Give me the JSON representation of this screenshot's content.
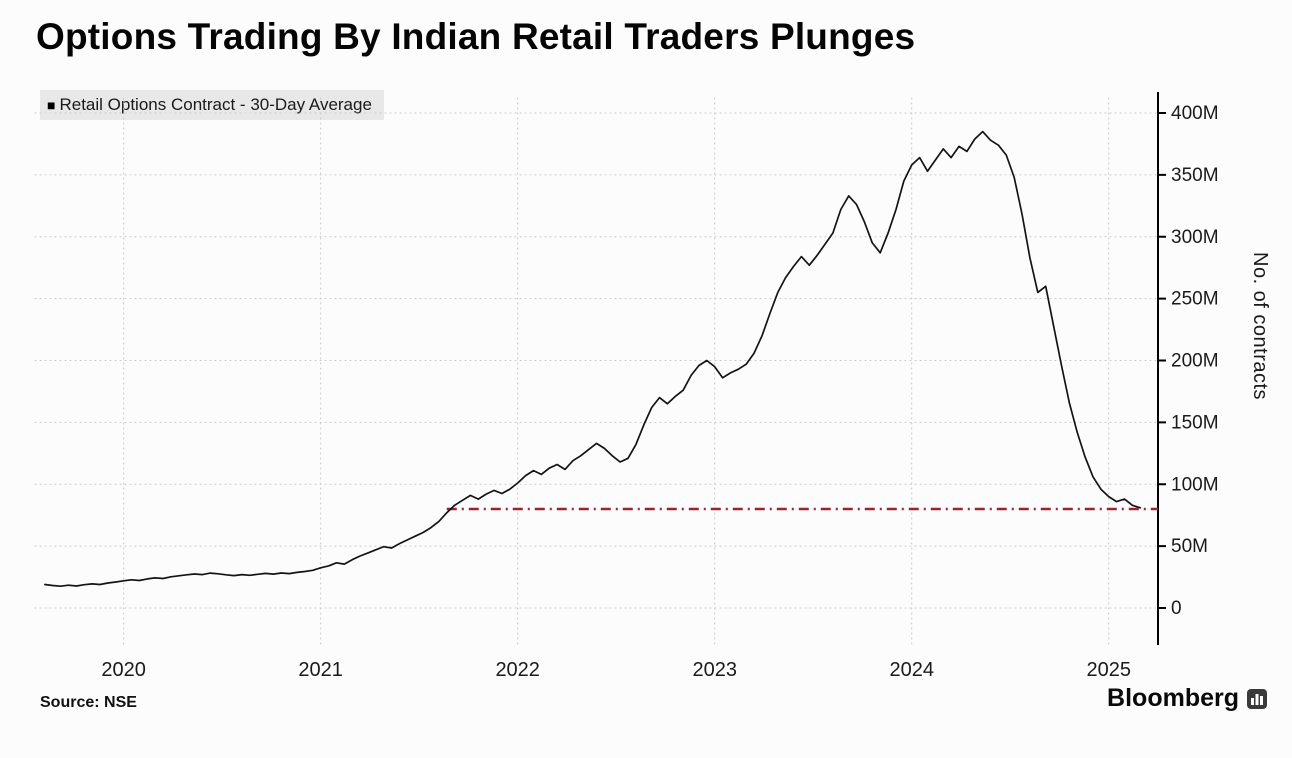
{
  "header": {
    "title": "Options Trading By Indian Retail Traders Plunges"
  },
  "legend": {
    "marker_glyph": "■",
    "label": "Retail Options Contract - 30-Day Average"
  },
  "footer": {
    "source": "Source: NSE",
    "brand": "Bloomberg"
  },
  "colors": {
    "grid": "#c6c6c6",
    "axis": "#000000",
    "series_line": "#141414",
    "reference_line": "#9c2333",
    "legend_background": "#e8e8e8"
  },
  "chart_data": {
    "type": "line",
    "title": "Options Trading By Indian Retail Traders Plunges",
    "xlabel": "",
    "ylabel": "No. of contracts",
    "grid": "dotted",
    "legend_position": "top-left",
    "xlim": [
      2019.55,
      2025.25
    ],
    "ylim": [
      0,
      400
    ],
    "x_ticks": [
      2020,
      2021,
      2022,
      2023,
      2024,
      2025
    ],
    "x_tick_labels": [
      "2020",
      "2021",
      "2022",
      "2023",
      "2024",
      "2025"
    ],
    "y_ticks": [
      0,
      50,
      100,
      150,
      200,
      250,
      300,
      350,
      400
    ],
    "y_tick_labels": [
      "0",
      "50M",
      "100M",
      "150M",
      "200M",
      "250M",
      "300M",
      "350M",
      "400M"
    ],
    "series": [
      {
        "name": "Retail Options Contract - 30-Day Average",
        "color": "#141414",
        "x_unit": "year",
        "y_unit": "contracts (millions)",
        "x_start": 2019.6,
        "x_step": 0.04,
        "values": [
          19,
          18.2,
          17.6,
          18.4,
          17.8,
          18.8,
          19.5,
          19,
          20.2,
          21,
          22,
          22.8,
          22.2,
          23.5,
          24.3,
          23.8,
          25.2,
          26,
          26.8,
          27.5,
          27,
          28.2,
          27.6,
          26.8,
          26.2,
          27,
          26.4,
          27.2,
          28,
          27.4,
          28.3,
          27.8,
          28.8,
          29.5,
          30.5,
          32.5,
          34,
          36.5,
          35.5,
          39,
          42,
          44.5,
          47,
          49.5,
          48.5,
          52,
          55,
          58,
          61,
          65,
          70,
          77,
          83,
          87,
          91,
          88,
          92,
          95,
          92.5,
          96,
          101,
          107,
          111,
          108,
          113,
          116,
          112,
          119,
          123,
          128,
          133,
          129,
          123,
          118,
          121,
          132,
          148,
          162,
          170,
          165,
          171,
          176,
          188,
          196,
          200,
          195,
          186,
          190,
          193,
          197,
          206,
          220,
          238,
          255,
          267,
          276,
          284,
          277,
          285,
          294,
          303,
          322,
          333,
          326,
          312,
          295,
          287,
          303,
          322,
          345,
          358,
          364,
          353,
          362,
          371,
          364,
          373,
          369,
          379,
          385,
          378,
          374,
          366,
          348,
          318,
          283,
          255,
          260,
          228,
          196,
          166,
          142,
          122,
          106,
          96,
          90,
          86,
          88,
          83,
          81
        ]
      }
    ],
    "reference_line": {
      "value": 80,
      "x_start": 2021.64,
      "x_end": 2025.25,
      "color": "#9c2333",
      "style": "dash-dot",
      "meaning": "current 30-day average level (~80M) marked back to when it was last at this level"
    }
  }
}
